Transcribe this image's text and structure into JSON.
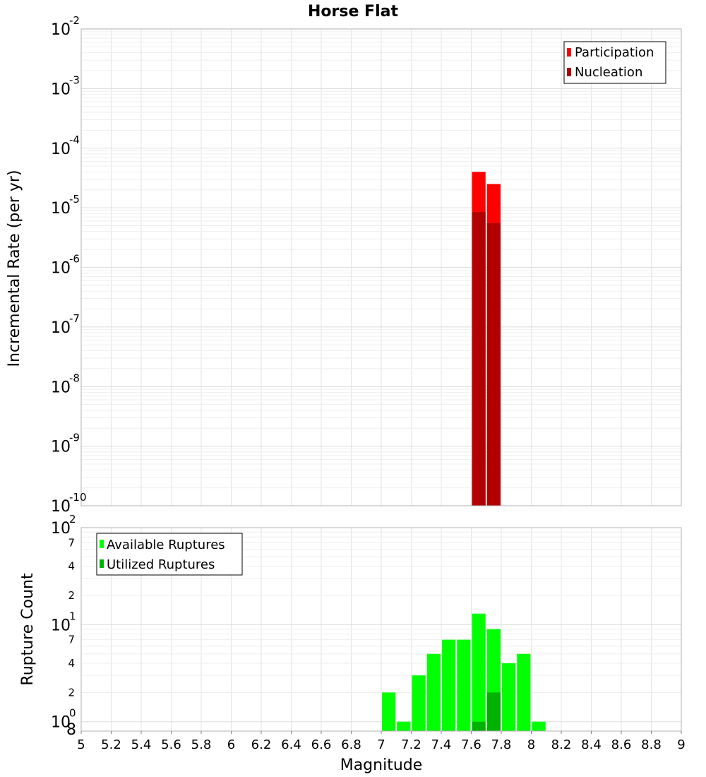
{
  "chart_data": [
    {
      "type": "bar",
      "title": "Horse Flat",
      "xlabel": "Magnitude",
      "ylabel": "Incremental Rate (per yr)",
      "yscale": "log",
      "xlim": [
        5,
        9
      ],
      "ylim": [
        1e-10,
        0.01
      ],
      "grid": true,
      "legend_position": "top-right",
      "bin_width": 0.1,
      "y_tick_labels": [
        {
          "base": "10",
          "exp": "-10"
        },
        {
          "base": "10",
          "exp": "-9"
        },
        {
          "base": "10",
          "exp": "-8"
        },
        {
          "base": "10",
          "exp": "-7"
        },
        {
          "base": "10",
          "exp": "-6"
        },
        {
          "base": "10",
          "exp": "-5"
        },
        {
          "base": "10",
          "exp": "-4"
        },
        {
          "base": "10",
          "exp": "-3"
        },
        {
          "base": "10",
          "exp": "-2"
        }
      ],
      "series": [
        {
          "name": "Participation",
          "color": "#ff0000",
          "x": [
            7.65,
            7.75
          ],
          "values": [
            4e-05,
            2.5e-05
          ]
        },
        {
          "name": "Nucleation",
          "color": "#b20000",
          "x": [
            7.65,
            7.75
          ],
          "values": [
            8.5e-06,
            5.5e-06
          ]
        }
      ]
    },
    {
      "type": "bar",
      "title": "",
      "xlabel": "Magnitude",
      "ylabel": "Rupture Count",
      "yscale": "log",
      "xlim": [
        5,
        9
      ],
      "ylim": [
        0.8,
        100
      ],
      "grid": true,
      "legend_position": "top-left",
      "bin_width": 0.1,
      "x_tick_labels": [
        "5",
        "5.2",
        "5.4",
        "5.6",
        "5.8",
        "6",
        "6.2",
        "6.4",
        "6.6",
        "6.8",
        "7",
        "7.2",
        "7.4",
        "7.6",
        "7.8",
        "8",
        "8.2",
        "8.4",
        "8.6",
        "8.8",
        "9"
      ],
      "y_tick_labels": [
        {
          "base": "10",
          "exp": "0"
        },
        {
          "base": "10",
          "exp": "1"
        },
        {
          "base": "10",
          "exp": "2"
        }
      ],
      "y_minor_tick_labels": [
        {
          "value": 0.8,
          "label": "8"
        },
        {
          "value": 2,
          "label": "2"
        },
        {
          "value": 4,
          "label": "4"
        },
        {
          "value": 7,
          "label": "7"
        },
        {
          "value": 20,
          "label": "2"
        },
        {
          "value": 40,
          "label": "4"
        },
        {
          "value": 70,
          "label": "7"
        }
      ],
      "series": [
        {
          "name": "Available Ruptures",
          "color": "#00ff00",
          "x": [
            7.05,
            7.15,
            7.25,
            7.35,
            7.45,
            7.55,
            7.65,
            7.75,
            7.85,
            7.95,
            8.05
          ],
          "values": [
            2,
            1,
            3,
            5,
            7,
            7,
            13,
            9,
            4,
            5,
            1
          ]
        },
        {
          "name": "Utilized Ruptures",
          "color": "#00b200",
          "x": [
            7.65,
            7.75
          ],
          "values": [
            1,
            2
          ]
        }
      ]
    }
  ]
}
